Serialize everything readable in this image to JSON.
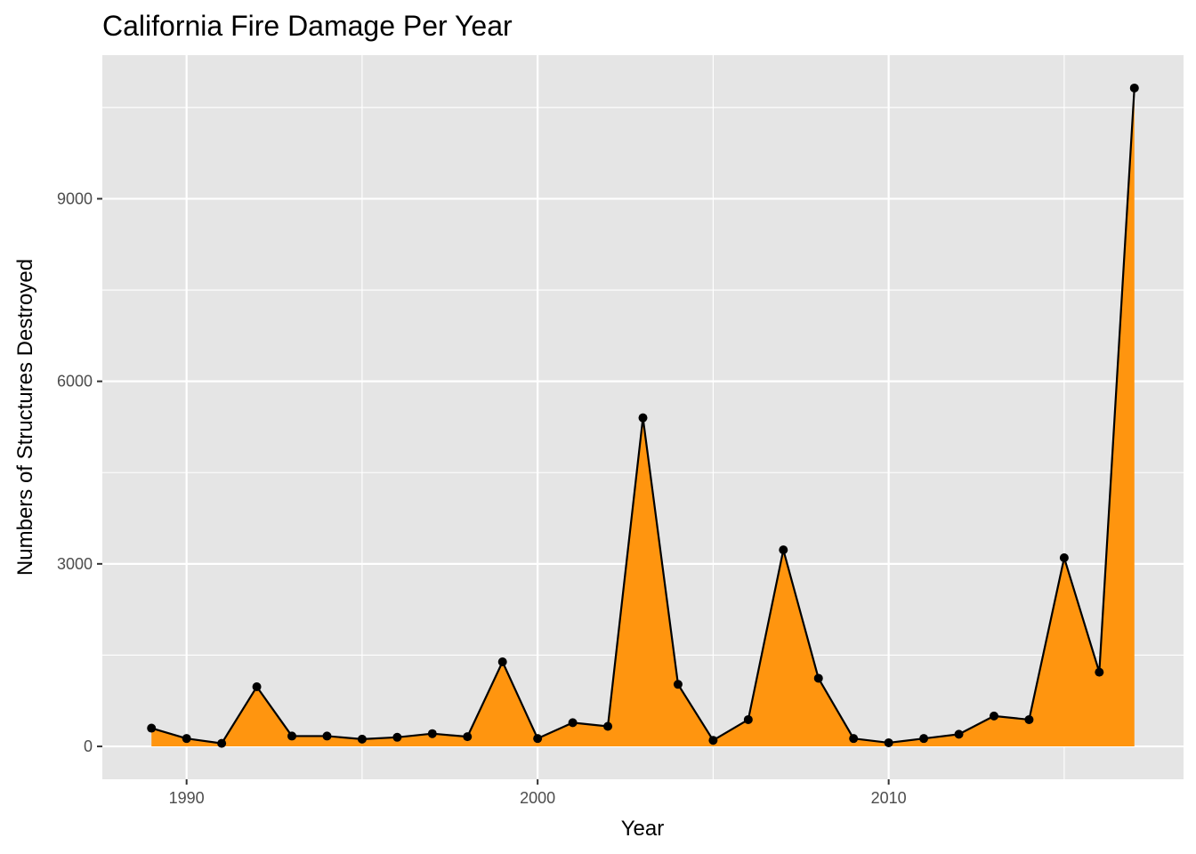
{
  "chart_data": {
    "type": "area",
    "title": "California Fire Damage Per Year",
    "xlabel": "Year",
    "ylabel": "Numbers of Structures Destroyed",
    "x": [
      1989,
      1990,
      1991,
      1992,
      1993,
      1994,
      1995,
      1996,
      1997,
      1998,
      1999,
      2000,
      2001,
      2002,
      2003,
      2004,
      2005,
      2006,
      2007,
      2008,
      2009,
      2010,
      2011,
      2012,
      2013,
      2014,
      2015,
      2016,
      2017
    ],
    "values": [
      300,
      130,
      50,
      980,
      170,
      170,
      120,
      150,
      210,
      160,
      1390,
      130,
      390,
      330,
      5400,
      1020,
      100,
      440,
      3230,
      1120,
      130,
      60,
      130,
      200,
      500,
      440,
      3100,
      1220,
      10820
    ],
    "xlim": [
      1987.6,
      2018.4
    ],
    "ylim": [
      -540,
      11360
    ],
    "x_ticks": [
      1990,
      2000,
      2010
    ],
    "x_tick_labels": [
      "1990",
      "2000",
      "2010"
    ],
    "y_ticks": [
      0,
      3000,
      6000,
      9000
    ],
    "y_tick_labels": [
      "0",
      "3000",
      "6000",
      "9000"
    ],
    "grid": true,
    "fill_color": "#ff950f",
    "line_color": "#000000",
    "panel_color": "#e5e5e5",
    "grid_color": "#ffffff"
  }
}
